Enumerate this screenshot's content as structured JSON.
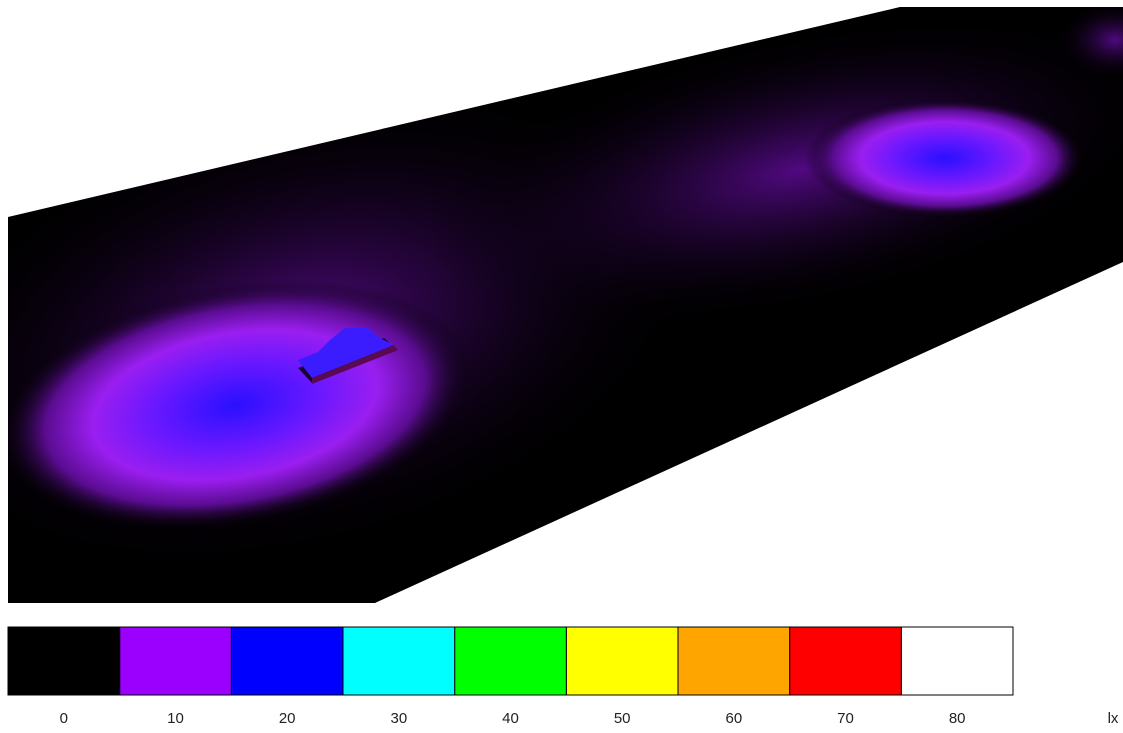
{
  "legend": {
    "values": [
      0,
      10,
      20,
      30,
      40,
      50,
      60,
      70,
      80
    ],
    "colors": [
      "#000000",
      "#9b00ff",
      "#0000ff",
      "#00ffff",
      "#00ff00",
      "#ffff00",
      "#ffa500",
      "#ff0000",
      "#ffffff"
    ],
    "unit": "lx"
  }
}
